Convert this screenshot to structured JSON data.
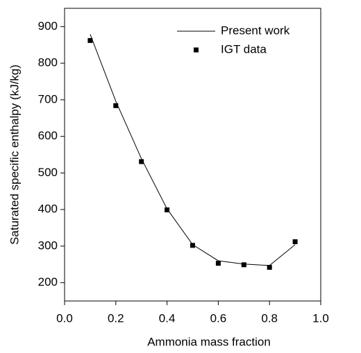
{
  "chart_data": {
    "type": "line",
    "xlabel": "Ammonia mass fraction",
    "ylabel": "Saturated specific enthalpy (kJ/kg)",
    "xlim": [
      0,
      1
    ],
    "ylim": [
      150,
      950
    ],
    "xticks": [
      {
        "value": 0,
        "label": "0.0"
      },
      0.2,
      0.4,
      0.6,
      0.8,
      {
        "value": 1,
        "label": "1.0"
      }
    ],
    "yticks": [
      200,
      300,
      400,
      500,
      600,
      700,
      800,
      900
    ],
    "legend": "upper right",
    "series": [
      {
        "name": "Present work",
        "color": "#000000",
        "mark": "line",
        "x": [
          0.1,
          0.2,
          0.3,
          0.4,
          0.5,
          0.6,
          0.7,
          0.8,
          0.9
        ],
        "values": [
          879,
          696,
          539,
          402,
          304,
          260,
          251,
          247,
          304
        ]
      },
      {
        "name": "IGT data",
        "color": "#000000",
        "mark": "square",
        "x": [
          0.1,
          0.2,
          0.3,
          0.4,
          0.5,
          0.6,
          0.7,
          0.8,
          0.9
        ],
        "values": [
          862,
          684,
          531,
          399,
          302,
          253,
          249,
          242,
          312
        ]
      }
    ]
  }
}
